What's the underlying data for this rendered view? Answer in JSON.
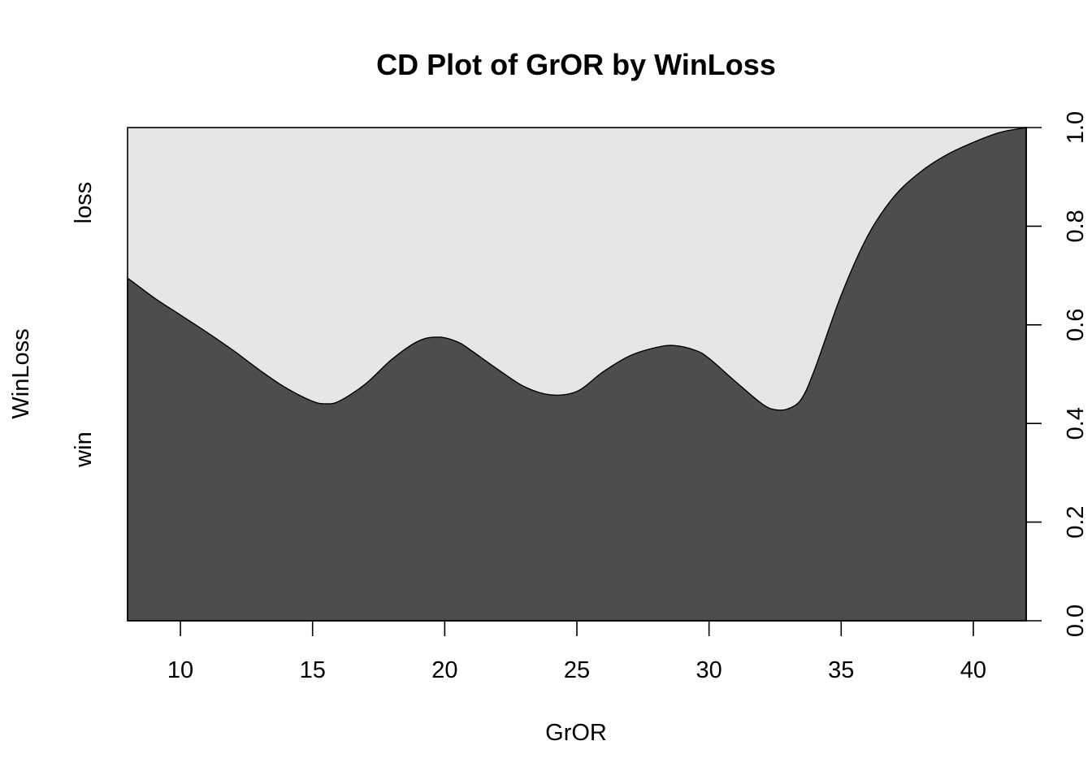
{
  "chart_data": {
    "type": "area",
    "title": "CD Plot of GrOR by WinLoss",
    "xlabel": "GrOR",
    "ylabel": "WinLoss",
    "xlim": [
      8,
      42
    ],
    "ylim": [
      0,
      1
    ],
    "x_ticks": [
      10,
      15,
      20,
      25,
      30,
      35,
      40
    ],
    "y_ticks": [
      "0.0",
      "0.2",
      "0.4",
      "0.6",
      "0.8",
      "1.0"
    ],
    "y_tick_values": [
      0,
      0.2,
      0.4,
      0.6,
      0.8,
      1.0
    ],
    "y_axis_side": "right",
    "levels": [
      {
        "name": "win",
        "color": "#4d4d4d"
      },
      {
        "name": "loss",
        "color": "#e6e6e6"
      }
    ],
    "series": [
      {
        "name": "win",
        "x": [
          8,
          9,
          10,
          11,
          12,
          13,
          14,
          15,
          15.5,
          16,
          17,
          18,
          19,
          19.8,
          20.5,
          21,
          22,
          23,
          24,
          25,
          26,
          27,
          28,
          28.7,
          29.5,
          30,
          31,
          32,
          32.5,
          33,
          33.5,
          34,
          35,
          36,
          37,
          38,
          39,
          40,
          41,
          42
        ],
        "y": [
          0.695,
          0.655,
          0.62,
          0.585,
          0.548,
          0.508,
          0.472,
          0.445,
          0.44,
          0.445,
          0.48,
          0.53,
          0.567,
          0.575,
          0.565,
          0.548,
          0.51,
          0.475,
          0.458,
          0.465,
          0.505,
          0.537,
          0.554,
          0.558,
          0.548,
          0.532,
          0.485,
          0.44,
          0.428,
          0.43,
          0.45,
          0.51,
          0.66,
          0.78,
          0.86,
          0.91,
          0.945,
          0.97,
          0.99,
          1.0
        ]
      }
    ]
  }
}
